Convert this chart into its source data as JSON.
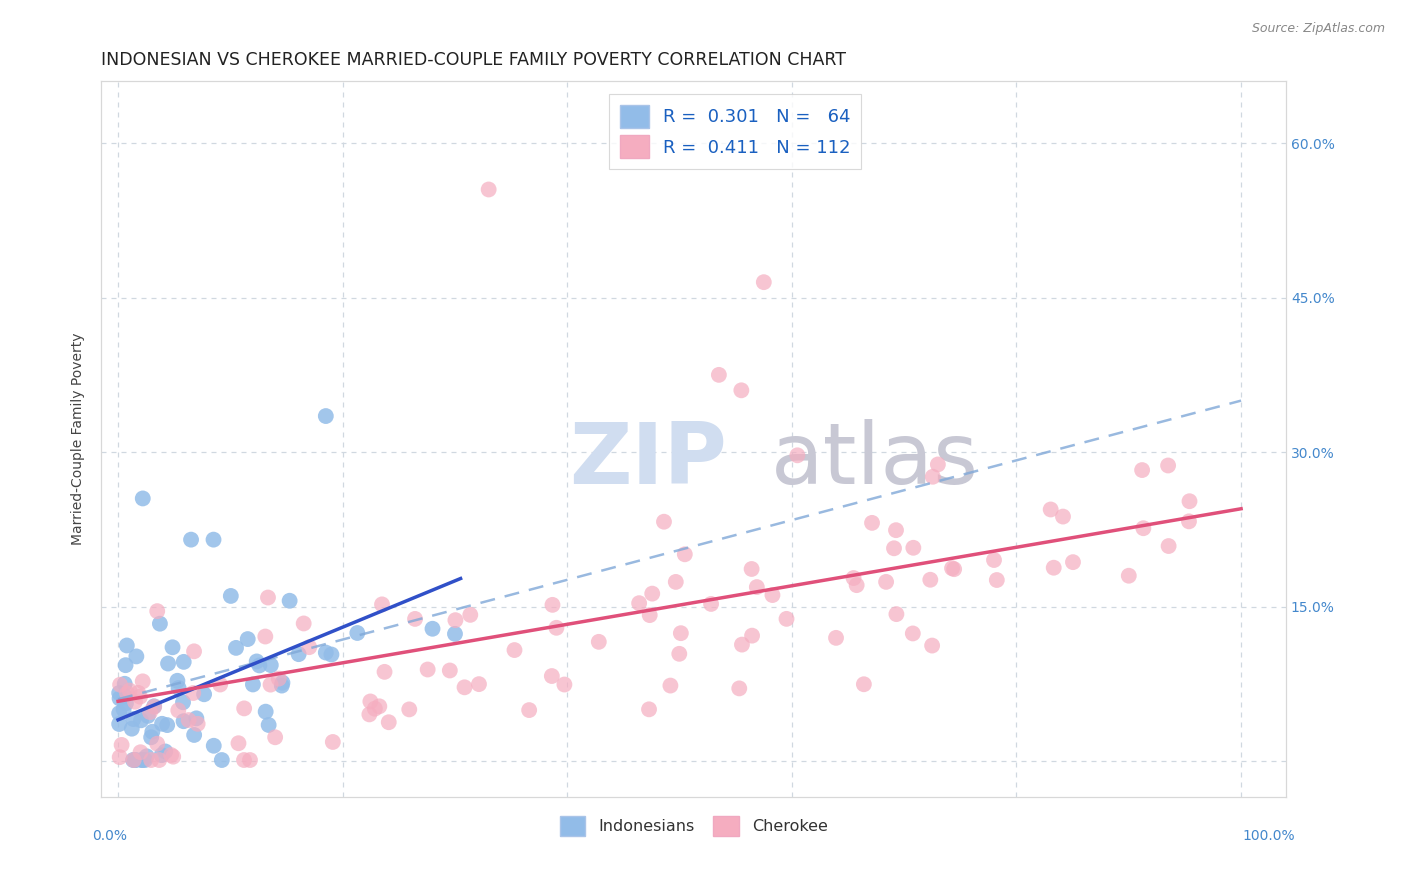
{
  "title": "INDONESIAN VS CHEROKEE MARRIED-COUPLE FAMILY POVERTY CORRELATION CHART",
  "source": "Source: ZipAtlas.com",
  "ylabel": "Married-Couple Family Poverty",
  "yticks": [
    0.0,
    0.15,
    0.3,
    0.45,
    0.6
  ],
  "xticks": [
    0.0,
    0.2,
    0.4,
    0.6,
    0.8,
    1.0
  ],
  "xlim": [
    -0.015,
    1.04
  ],
  "ylim": [
    -0.035,
    0.66
  ],
  "indonesian_color": "#92bce8",
  "cherokee_color": "#f5adc0",
  "indonesian_line_color": "#3050c8",
  "cherokee_line_color": "#e0507a",
  "dashed_line_color": "#80a8d8",
  "background_color": "#ffffff",
  "grid_color": "#d0d8e0",
  "title_fontsize": 12.5,
  "label_fontsize": 10,
  "tick_fontsize": 10,
  "source_fontsize": 9,
  "right_tick_color": "#4488cc",
  "legend_text_color": "#1a60c0",
  "watermark_zip_color": "#d0ddf0",
  "watermark_atlas_color": "#c8c8d4"
}
